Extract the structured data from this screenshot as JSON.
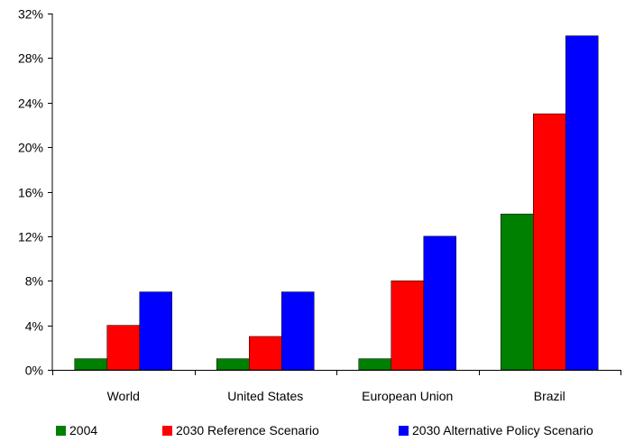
{
  "chart_data": {
    "type": "bar",
    "title": "",
    "xlabel": "",
    "ylabel": "",
    "categories": [
      "World",
      "United States",
      "European Union",
      "Brazil"
    ],
    "series": [
      {
        "name": "2004",
        "color": "#008000",
        "values": [
          1,
          1,
          1,
          14
        ]
      },
      {
        "name": "2030 Reference Scenario",
        "color": "#ff0000",
        "values": [
          4,
          3,
          8,
          23
        ]
      },
      {
        "name": "2030 Alternative Policy Scenario",
        "color": "#0000ff",
        "values": [
          7,
          7,
          12,
          30
        ]
      }
    ],
    "ylim": [
      0,
      32
    ],
    "yticks": [
      0,
      4,
      8,
      12,
      16,
      20,
      24,
      28,
      32
    ],
    "ytick_labels": [
      "0%",
      "4%",
      "8%",
      "12%",
      "16%",
      "20%",
      "24%",
      "28%",
      "32%"
    ],
    "y_unit": "%",
    "grid": false,
    "legend_position": "bottom"
  }
}
